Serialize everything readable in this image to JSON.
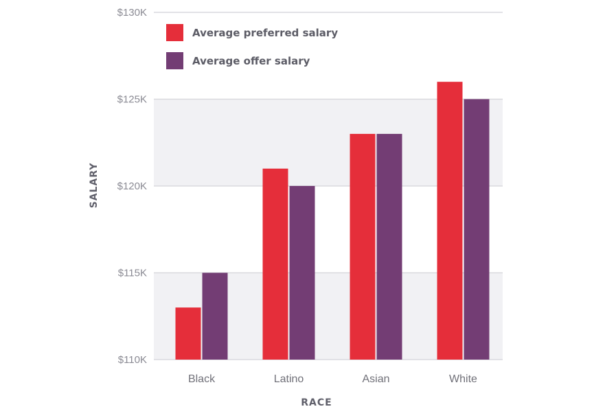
{
  "chart_data": {
    "type": "bar",
    "title": "",
    "xlabel": "RACE",
    "ylabel": "SALARY",
    "categories": [
      "Black",
      "Latino",
      "Asian",
      "White"
    ],
    "series": [
      {
        "name": "Average preferred salary",
        "color": "#e52e3a",
        "values": [
          113,
          121,
          123,
          126
        ]
      },
      {
        "name": "Average offer salary",
        "color": "#733d74",
        "values": [
          115,
          120,
          123,
          125
        ]
      }
    ],
    "units": "thousands USD",
    "ylim": [
      110,
      130
    ],
    "yticks": [
      110,
      115,
      120,
      125,
      130
    ],
    "ytick_labels": [
      "$110K",
      "$115K",
      "$120K",
      "$125K",
      "$130K"
    ],
    "grid": true,
    "alternating_bands": true,
    "legend_position": "top-left"
  },
  "colors": {
    "band": "#f1f1f4",
    "gridline": "#d9d9de"
  }
}
